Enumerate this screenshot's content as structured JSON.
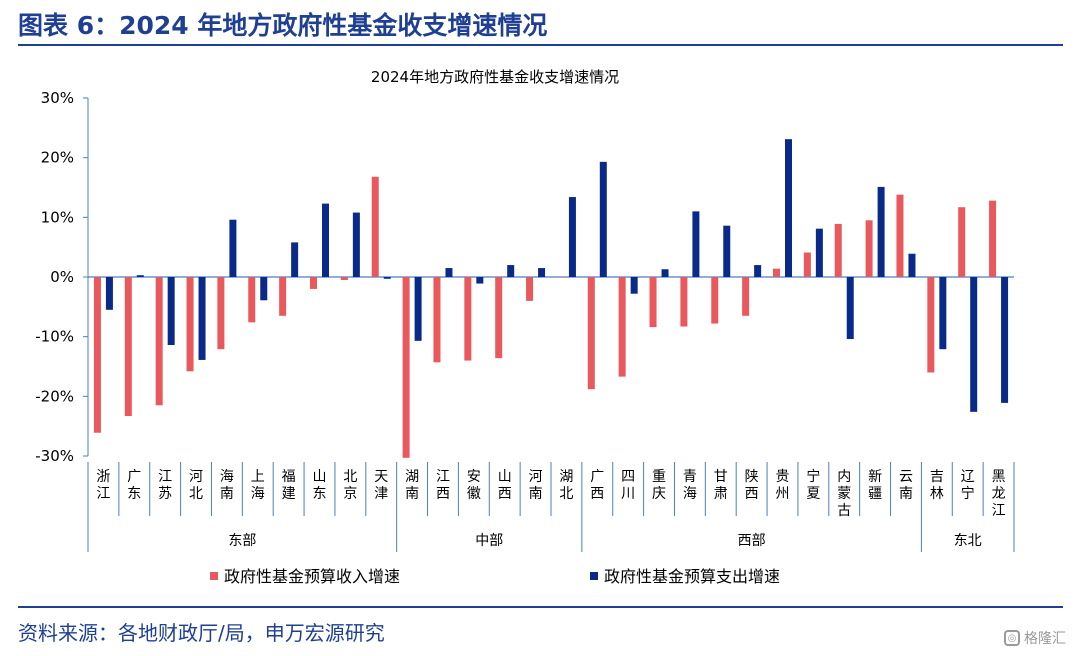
{
  "figure": {
    "title": "图表 6：2024 年地方政府性基金收支增速情况",
    "source": "资料来源：各地财政厅/局，申万宏源研究",
    "watermark_text": "格隆汇",
    "watermark_icon": "logo-icon"
  },
  "chart_data": {
    "type": "bar",
    "title": "2024年地方政府性基金收支增速情况",
    "categories": [
      "浙江",
      "广东",
      "江苏",
      "河北",
      "海南",
      "上海",
      "福建",
      "山东",
      "北京",
      "天津",
      "湖南",
      "江西",
      "安徽",
      "山西",
      "河南",
      "湖北",
      "广西",
      "四川",
      "重庆",
      "青海",
      "甘肃",
      "陕西",
      "贵州",
      "宁夏",
      "内蒙古",
      "新疆",
      "云南",
      "吉林",
      "辽宁",
      "黑龙江"
    ],
    "groups": [
      {
        "name": "东部",
        "start": 0,
        "end": 9
      },
      {
        "name": "中部",
        "start": 10,
        "end": 15
      },
      {
        "name": "西部",
        "start": 16,
        "end": 26
      },
      {
        "name": "东北",
        "start": 27,
        "end": 29
      }
    ],
    "series": [
      {
        "name": "政府性基金预算收入增速",
        "color": "#e8585c",
        "values": [
          -26.1,
          -23.3,
          -21.5,
          -15.8,
          -12.1,
          -7.6,
          -6.5,
          -2.0,
          -0.5,
          16.8,
          -30.3,
          -14.3,
          -14.0,
          -13.6,
          -4.0,
          0,
          -18.8,
          -16.7,
          -8.4,
          -8.3,
          -7.8,
          -6.5,
          1.4,
          4.1,
          8.9,
          9.5,
          13.8,
          -16.0,
          11.7,
          12.8
        ]
      },
      {
        "name": "政府性基金预算支出增速",
        "color": "#0a2a8a",
        "values": [
          -5.5,
          0.3,
          -11.4,
          -13.9,
          9.6,
          -3.9,
          5.8,
          12.3,
          10.8,
          -0.3,
          -10.7,
          1.5,
          -1.1,
          2.0,
          1.5,
          13.4,
          19.3,
          -2.8,
          1.3,
          11.0,
          8.6,
          2.0,
          23.1,
          8.1,
          -10.4,
          15.1,
          3.9,
          -12.1,
          -22.6,
          -21.1
        ]
      }
    ],
    "ylim": [
      -30,
      30
    ],
    "yticks": [
      "30%",
      "20%",
      "10%",
      "0%",
      "-10%",
      "-20%",
      "-30%"
    ],
    "ytick_values": [
      30,
      20,
      10,
      0,
      -10,
      -20,
      -30
    ],
    "grid": false,
    "legend_position": "bottom"
  }
}
